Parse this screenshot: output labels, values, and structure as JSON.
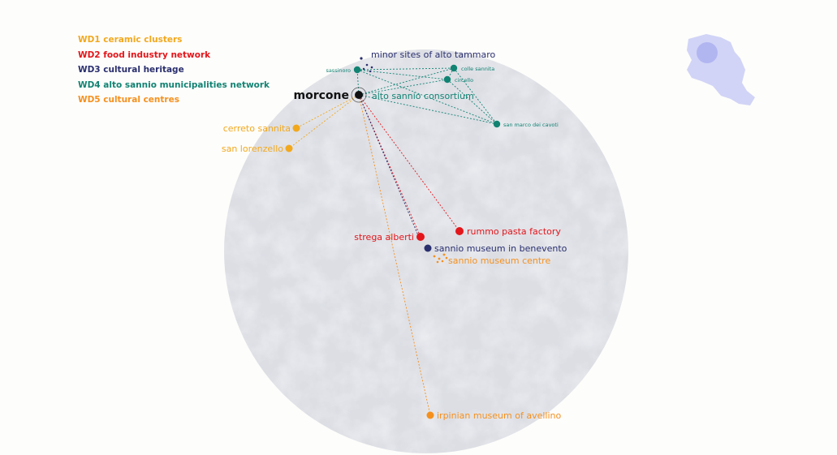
{
  "colors": {
    "wd1": "#f2a81d",
    "wd2": "#e3161b",
    "wd3": "#2a2f6e",
    "wd4": "#128373",
    "wd5": "#f5901e",
    "hub": "#111111",
    "circle": "#d9dbe2",
    "region": "#c9cdf5"
  },
  "legend": [
    {
      "label": "WD1 ceramic clusters",
      "color": "#f2a81d"
    },
    {
      "label": "WD2 food industry network",
      "color": "#e3161b"
    },
    {
      "label": "WD3 cultural heritage",
      "color": "#2a2f6e"
    },
    {
      "label": "WD4 alto sannio municipalities network",
      "color": "#128373"
    },
    {
      "label": "WD5 cultural centres",
      "color": "#f5901e"
    }
  ],
  "hub": {
    "label": "morcone"
  },
  "places": {
    "minor_sites": "minor sites of alto tammaro",
    "alto_sannio": "alto sannio consortium",
    "sassinoro": "sassinoro",
    "colle_sannita": "colle sannita",
    "circello": "circello",
    "san_marco": "san marco dei cavoti",
    "cerreto": "cerreto sannita",
    "san_lorenzello": "san lorenzello",
    "strega": "strega alberti",
    "rummo": "rummo pasta factory",
    "sannio_museum": "sannio museum in benevento",
    "sannio_centre": "sannio museum centre",
    "irpinian": "irpinian museum of avellino"
  }
}
